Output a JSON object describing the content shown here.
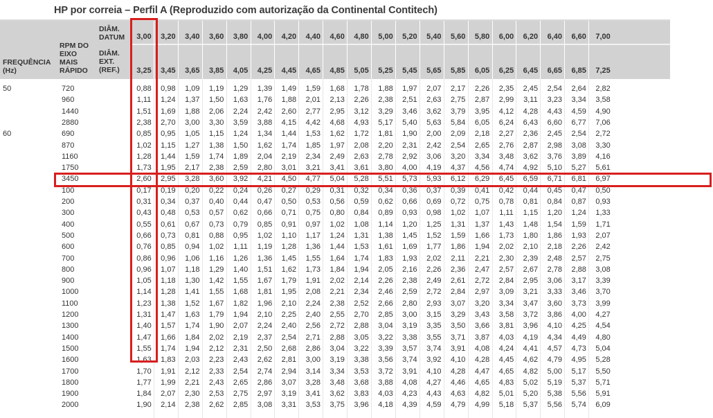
{
  "title": "HP por correia – Perfil A (Reproduzido com autorização da Continental Contitech)",
  "headers": {
    "freq": [
      "FREQUÊNCIA",
      "(Hz)"
    ],
    "rpm": [
      "RPM DO",
      "EIXO",
      "MAIS",
      "RÁPIDO"
    ],
    "datum": [
      "DIÂM.",
      "DATUM"
    ],
    "ext": [
      "DIÂM.",
      "EXT.",
      "(REF.)"
    ]
  },
  "datum_values": [
    "3,00",
    "3,20",
    "3,40",
    "3,60",
    "3,80",
    "4,00",
    "4,20",
    "4,40",
    "4,60",
    "4,80",
    "5,00",
    "5,20",
    "5,40",
    "5,60",
    "5,80",
    "6,00",
    "6,20",
    "6,40",
    "6,60",
    "7,00"
  ],
  "ext_values": [
    "3,25",
    "3,45",
    "3,65",
    "3,85",
    "4,05",
    "4,25",
    "4,45",
    "4,65",
    "4,85",
    "5,05",
    "5,25",
    "5,45",
    "5,65",
    "5,85",
    "6,05",
    "6,25",
    "6,45",
    "6,65",
    "6,85",
    "7,25"
  ],
  "rows": [
    {
      "freq": "50",
      "rpm": "720",
      "v": [
        "0,88",
        "0,98",
        "1,09",
        "1,19",
        "1,29",
        "1,39",
        "1,49",
        "1,59",
        "1,68",
        "1,78",
        "1,88",
        "1,97",
        "2,07",
        "2,17",
        "2,26",
        "2,35",
        "2,45",
        "2,54",
        "2,64",
        "2,82"
      ]
    },
    {
      "freq": "",
      "rpm": "960",
      "v": [
        "1,11",
        "1,24",
        "1,37",
        "1,50",
        "1,63",
        "1,76",
        "1,88",
        "2,01",
        "2,13",
        "2,26",
        "2,38",
        "2,51",
        "2,63",
        "2,75",
        "2,87",
        "2,99",
        "3,11",
        "3,23",
        "3,34",
        "3,58"
      ]
    },
    {
      "freq": "",
      "rpm": "1440",
      "v": [
        "1,51",
        "1,69",
        "1,88",
        "2,06",
        "2,24",
        "2,42",
        "2,60",
        "2,77",
        "2,95",
        "3,12",
        "3,29",
        "3,46",
        "3,62",
        "3,79",
        "3,95",
        "4,12",
        "4,28",
        "4,43",
        "4,59",
        "4,90"
      ]
    },
    {
      "freq": "",
      "rpm": "2880",
      "v": [
        "2,38",
        "2,70",
        "3,00",
        "3,30",
        "3,59",
        "3,88",
        "4,15",
        "4,42",
        "4,68",
        "4,93",
        "5,17",
        "5,40",
        "5,63",
        "5,84",
        "6,05",
        "6,24",
        "6,43",
        "6,60",
        "6,77",
        "7,06"
      ]
    },
    {
      "freq": "60",
      "rpm": "690",
      "v": [
        "0,85",
        "0,95",
        "1,05",
        "1,15",
        "1,24",
        "1,34",
        "1,44",
        "1,53",
        "1,62",
        "1,72",
        "1,81",
        "1,90",
        "2,00",
        "2,09",
        "2,18",
        "2,27",
        "2,36",
        "2,45",
        "2,54",
        "2,72"
      ]
    },
    {
      "freq": "",
      "rpm": "870",
      "v": [
        "1,02",
        "1,15",
        "1,27",
        "1,38",
        "1,50",
        "1,62",
        "1,74",
        "1,85",
        "1,97",
        "2,08",
        "2,20",
        "2,31",
        "2,42",
        "2,54",
        "2,65",
        "2,76",
        "2,87",
        "2,98",
        "3,08",
        "3,30"
      ]
    },
    {
      "freq": "",
      "rpm": "1160",
      "v": [
        "1,28",
        "1,44",
        "1,59",
        "1,74",
        "1,89",
        "2,04",
        "2,19",
        "2,34",
        "2,49",
        "2,63",
        "2,78",
        "2,92",
        "3,06",
        "3,20",
        "3,34",
        "3,48",
        "3,62",
        "3,76",
        "3,89",
        "4,16"
      ]
    },
    {
      "freq": "",
      "rpm": "1750",
      "v": [
        "1,73",
        "1,95",
        "2,17",
        "2,38",
        "2,59",
        "2,80",
        "3,01",
        "3,21",
        "3,41",
        "3,61",
        "3,80",
        "4,00",
        "4,19",
        "4,37",
        "4,56",
        "4,74",
        "4,92",
        "5,10",
        "5,27",
        "5,61"
      ]
    },
    {
      "freq": "",
      "rpm": "3450",
      "v": [
        "2,60",
        "2,95",
        "3,28",
        "3,60",
        "3,92",
        "4,21",
        "4,50",
        "4,77",
        "5,04",
        "5,28",
        "5,51",
        "5,73",
        "5,93",
        "6,12",
        "6,29",
        "6,45",
        "6,59",
        "6,71",
        "6,81",
        "6,97"
      ]
    },
    {
      "freq": "",
      "rpm": "100",
      "v": [
        "0,17",
        "0,19",
        "0,20",
        "0,22",
        "0,24",
        "0,26",
        "0,27",
        "0,29",
        "0,31",
        "0,32",
        "0,34",
        "0,36",
        "0,37",
        "0,39",
        "0,41",
        "0,42",
        "0,44",
        "0,45",
        "0,47",
        "0,50"
      ]
    },
    {
      "freq": "",
      "rpm": "200",
      "v": [
        "0,31",
        "0,34",
        "0,37",
        "0,40",
        "0,44",
        "0,47",
        "0,50",
        "0,53",
        "0,56",
        "0,59",
        "0,62",
        "0,66",
        "0,69",
        "0,72",
        "0,75",
        "0,78",
        "0,81",
        "0,84",
        "0,87",
        "0,93"
      ]
    },
    {
      "freq": "",
      "rpm": "300",
      "v": [
        "0,43",
        "0,48",
        "0,53",
        "0,57",
        "0,62",
        "0,66",
        "0,71",
        "0,75",
        "0,80",
        "0,84",
        "0,89",
        "0,93",
        "0,98",
        "1,02",
        "1,07",
        "1,11",
        "1,15",
        "1,20",
        "1,24",
        "1,33"
      ]
    },
    {
      "freq": "",
      "rpm": "400",
      "v": [
        "0,55",
        "0,61",
        "0,67",
        "0,73",
        "0,79",
        "0,85",
        "0,91",
        "0,97",
        "1,02",
        "1,08",
        "1,14",
        "1,20",
        "1,25",
        "1,31",
        "1,37",
        "1,43",
        "1,48",
        "1,54",
        "1,59",
        "1,71"
      ]
    },
    {
      "freq": "",
      "rpm": "500",
      "v": [
        "0,66",
        "0,73",
        "0,81",
        "0,88",
        "0,95",
        "1,02",
        "1,10",
        "1,17",
        "1,24",
        "1,31",
        "1,38",
        "1,45",
        "1,52",
        "1,59",
        "1,66",
        "1,73",
        "1,80",
        "1,86",
        "1,93",
        "2,07"
      ]
    },
    {
      "freq": "",
      "rpm": "600",
      "v": [
        "0,76",
        "0,85",
        "0,94",
        "1,02",
        "1,11",
        "1,19",
        "1,28",
        "1,36",
        "1,44",
        "1,53",
        "1,61",
        "1,69",
        "1,77",
        "1,86",
        "1,94",
        "2,02",
        "2,10",
        "2,18",
        "2,26",
        "2,42"
      ]
    },
    {
      "freq": "",
      "rpm": "700",
      "v": [
        "0,86",
        "0,96",
        "1,06",
        "1,16",
        "1,26",
        "1,36",
        "1,45",
        "1,55",
        "1,64",
        "1,74",
        "1,83",
        "1,93",
        "2,02",
        "2,11",
        "2,21",
        "2,30",
        "2,39",
        "2,48",
        "2,57",
        "2,75"
      ]
    },
    {
      "freq": "",
      "rpm": "800",
      "v": [
        "0,96",
        "1,07",
        "1,18",
        "1,29",
        "1,40",
        "1,51",
        "1,62",
        "1,73",
        "1,84",
        "1,94",
        "2,05",
        "2,16",
        "2,26",
        "2,36",
        "2,47",
        "2,57",
        "2,67",
        "2,78",
        "2,88",
        "3,08"
      ]
    },
    {
      "freq": "",
      "rpm": "900",
      "v": [
        "1,05",
        "1,18",
        "1,30",
        "1,42",
        "1,55",
        "1,67",
        "1,79",
        "1,91",
        "2,02",
        "2,14",
        "2,26",
        "2,38",
        "2,49",
        "2,61",
        "2,72",
        "2,84",
        "2,95",
        "3,06",
        "3,17",
        "3,39"
      ]
    },
    {
      "freq": "",
      "rpm": "1000",
      "v": [
        "1,14",
        "1,28",
        "1,41",
        "1,55",
        "1,68",
        "1,81",
        "1,95",
        "2,08",
        "2,21",
        "2,34",
        "2,46",
        "2,59",
        "2,72",
        "2,84",
        "2,97",
        "3,09",
        "3,21",
        "3,33",
        "3,46",
        "3,70"
      ]
    },
    {
      "freq": "",
      "rpm": "1100",
      "v": [
        "1,23",
        "1,38",
        "1,52",
        "1,67",
        "1,82",
        "1,96",
        "2,10",
        "2,24",
        "2,38",
        "2,52",
        "2,66",
        "2,80",
        "2,93",
        "3,07",
        "3,20",
        "3,34",
        "3,47",
        "3,60",
        "3,73",
        "3,99"
      ]
    },
    {
      "freq": "",
      "rpm": "1200",
      "v": [
        "1,31",
        "1,47",
        "1,63",
        "1,79",
        "1,94",
        "2,10",
        "2,25",
        "2,40",
        "2,55",
        "2,70",
        "2,85",
        "3,00",
        "3,15",
        "3,29",
        "3,43",
        "3,58",
        "3,72",
        "3,86",
        "4,00",
        "4,27"
      ]
    },
    {
      "freq": "",
      "rpm": "1300",
      "v": [
        "1,40",
        "1,57",
        "1,74",
        "1,90",
        "2,07",
        "2,24",
        "2,40",
        "2,56",
        "2,72",
        "2,88",
        "3,04",
        "3,19",
        "3,35",
        "3,50",
        "3,66",
        "3,81",
        "3,96",
        "4,10",
        "4,25",
        "4,54"
      ]
    },
    {
      "freq": "",
      "rpm": "1400",
      "v": [
        "1,47",
        "1,66",
        "1,84",
        "2,02",
        "2,19",
        "2,37",
        "2,54",
        "2,71",
        "2,88",
        "3,05",
        "3,22",
        "3,38",
        "3,55",
        "3,71",
        "3,87",
        "4,03",
        "4,19",
        "4,34",
        "4,49",
        "4,80"
      ]
    },
    {
      "freq": "",
      "rpm": "1500",
      "v": [
        "1,55",
        "1,74",
        "1,94",
        "2,12",
        "2,31",
        "2,50",
        "2,68",
        "2,86",
        "3,04",
        "3,22",
        "3,39",
        "3,57",
        "3,74",
        "3,91",
        "4,08",
        "4,24",
        "4,41",
        "4,57",
        "4,73",
        "5,04"
      ]
    },
    {
      "freq": "",
      "rpm": "1600",
      "v": [
        "1,63",
        "1,83",
        "2,03",
        "2,23",
        "2,43",
        "2,62",
        "2,81",
        "3,00",
        "3,19",
        "3,38",
        "3,56",
        "3,74",
        "3,92",
        "4,10",
        "4,28",
        "4,45",
        "4,62",
        "4,79",
        "4,95",
        "5,28"
      ]
    },
    {
      "freq": "",
      "rpm": "1700",
      "v": [
        "1,70",
        "1,91",
        "2,12",
        "2,33",
        "2,54",
        "2,74",
        "2,94",
        "3,14",
        "3,34",
        "3,53",
        "3,72",
        "3,91",
        "4,10",
        "4,28",
        "4,47",
        "4,65",
        "4,82",
        "5,00",
        "5,17",
        "5,50"
      ]
    },
    {
      "freq": "",
      "rpm": "1800",
      "v": [
        "1,77",
        "1,99",
        "2,21",
        "2,43",
        "2,65",
        "2,86",
        "3,07",
        "3,28",
        "3,48",
        "3,68",
        "3,88",
        "4,08",
        "4,27",
        "4,46",
        "4,65",
        "4,83",
        "5,02",
        "5,19",
        "5,37",
        "5,71"
      ]
    },
    {
      "freq": "",
      "rpm": "1900",
      "v": [
        "1,84",
        "2,07",
        "2,30",
        "2,53",
        "2,75",
        "2,97",
        "3,19",
        "3,41",
        "3,62",
        "3,83",
        "4,03",
        "4,23",
        "4,43",
        "4,63",
        "4,82",
        "5,01",
        "5,20",
        "5,38",
        "5,56",
        "5,91"
      ]
    },
    {
      "freq": "",
      "rpm": "2000",
      "v": [
        "1,90",
        "2,14",
        "2,38",
        "2,62",
        "2,85",
        "3,08",
        "3,31",
        "3,53",
        "3,75",
        "3,96",
        "4,18",
        "4,39",
        "4,59",
        "4,79",
        "4,99",
        "5,18",
        "5,37",
        "5,56",
        "5,74",
        "6,09"
      ]
    }
  ]
}
